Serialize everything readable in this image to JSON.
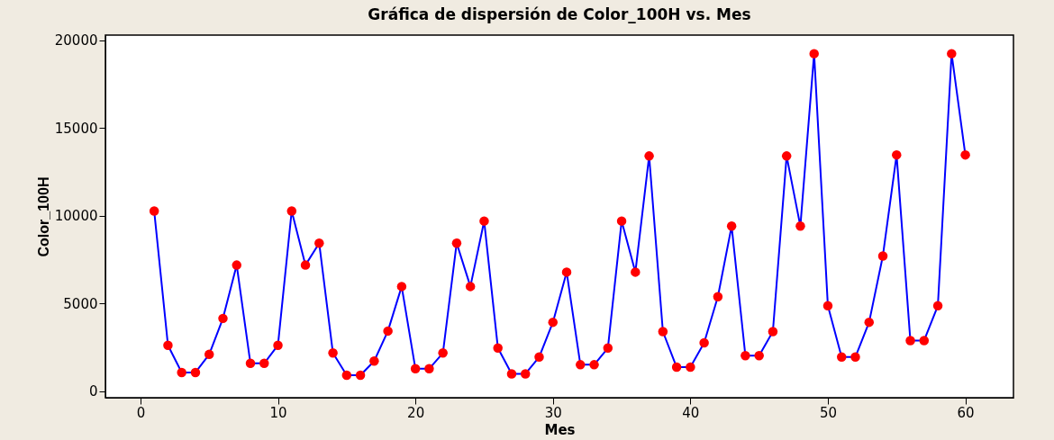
{
  "chart_data": {
    "type": "line",
    "title": "Gráfica de dispersión de Color_100H vs. Mes",
    "xlabel": "Mes",
    "ylabel": "Color_100H",
    "x": [
      1,
      2,
      3,
      4,
      5,
      6,
      7,
      8,
      9,
      10,
      11,
      12,
      13,
      14,
      15,
      16,
      17,
      18,
      19,
      20,
      21,
      22,
      23,
      24,
      25,
      26,
      27,
      28,
      29,
      30,
      31,
      32,
      33,
      34,
      35,
      36,
      37,
      38,
      39,
      40,
      41,
      42,
      43,
      44,
      45,
      46,
      47,
      48,
      49,
      50,
      51,
      52,
      53,
      54,
      55,
      56,
      57,
      58,
      59,
      60
    ],
    "series": [
      {
        "color": "#0000ff",
        "values": [
          10260,
          2610,
          1060,
          1060,
          2090,
          4140,
          7180,
          1580,
          1580,
          2610,
          10260,
          7180,
          8430,
          2170,
          900,
          900,
          1710,
          3420,
          5960,
          1270,
          1270,
          2170,
          8430,
          5960,
          9690,
          2450,
          980,
          980,
          1940,
          3920,
          6780,
          1500,
          1500,
          2450,
          9690,
          6780,
          13400,
          3390,
          1360,
          1360,
          2750,
          5380,
          9400,
          2020,
          2020,
          3390,
          13400,
          9400,
          19230,
          4860,
          1940,
          1940,
          3920,
          7700,
          13460,
          2880,
          2880,
          4860,
          19230,
          13460
        ]
      }
    ],
    "marker": "circle",
    "line_style": "solid",
    "grid": false,
    "xlim": [
      -2.55,
      63.5
    ],
    "ylim": [
      -380,
      20290
    ],
    "xticks": [
      0,
      10,
      20,
      30,
      40,
      50,
      60
    ],
    "yticks": [
      0,
      5000,
      10000,
      15000,
      20000
    ]
  }
}
